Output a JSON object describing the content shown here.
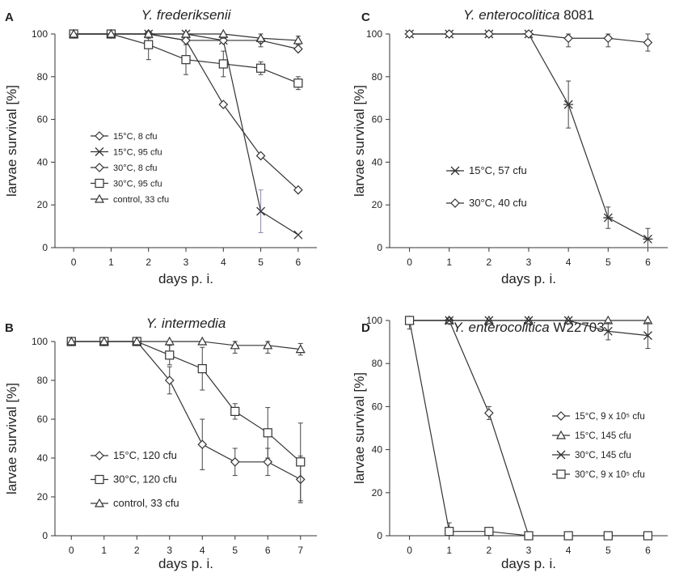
{
  "chart_data": [
    {
      "panel_letter": "A",
      "type": "line",
      "title": "Y. frederiksenii",
      "title_italic_part": "Y. frederiksenii",
      "title_regular_part": "",
      "xlabel": "days p. i.",
      "ylabel": "larvae survival [%]",
      "xlim": [
        -0.5,
        6.5
      ],
      "ylim": [
        0,
        100
      ],
      "xticks": [
        0,
        1,
        2,
        3,
        4,
        5,
        6
      ],
      "yticks": [
        0,
        20,
        40,
        60,
        80,
        100
      ],
      "legend_position": "lower-left",
      "series": [
        {
          "name": "15°C, 8 cfu",
          "marker": "diamond",
          "x": [
            0,
            1,
            2,
            3,
            4,
            5,
            6
          ],
          "values": [
            100,
            100,
            100,
            97,
            67,
            43,
            27
          ],
          "err": [
            0,
            0,
            0,
            0,
            0,
            0,
            0
          ]
        },
        {
          "name": "15°C, 95 cfu",
          "marker": "x",
          "x": [
            0,
            1,
            2,
            3,
            4,
            5,
            6
          ],
          "values": [
            100,
            100,
            100,
            100,
            97,
            17,
            6
          ],
          "err": [
            0,
            0,
            0,
            0,
            0,
            10,
            0
          ]
        },
        {
          "name": "30°C, 8 cfu",
          "marker": "diamond",
          "x": [
            0,
            1,
            2,
            3,
            4,
            5,
            6
          ],
          "values": [
            100,
            100,
            100,
            97,
            97,
            97,
            93
          ],
          "err": [
            0,
            0,
            0,
            0,
            0,
            0,
            0
          ]
        },
        {
          "name": "30°C, 95 cfu",
          "marker": "square",
          "x": [
            0,
            1,
            2,
            3,
            4,
            5,
            6
          ],
          "values": [
            100,
            100,
            95,
            88,
            86,
            84,
            77
          ],
          "err": [
            0,
            0,
            7,
            7,
            6,
            3,
            3
          ]
        },
        {
          "name": "control, 33 cfu",
          "marker": "triangle",
          "x": [
            0,
            1,
            2,
            3,
            4,
            5,
            6
          ],
          "values": [
            100,
            100,
            100,
            100,
            100,
            98,
            97
          ],
          "err": [
            0,
            0,
            2,
            0,
            2,
            4,
            2
          ]
        }
      ]
    },
    {
      "panel_letter": "B",
      "type": "line",
      "title": "Y. intermedia",
      "title_italic_part": "Y. intermedia",
      "title_regular_part": "",
      "xlabel": "days p. i.",
      "ylabel": "larvae survival [%]",
      "xlim": [
        -0.5,
        7.5
      ],
      "ylim": [
        0,
        100
      ],
      "xticks": [
        0,
        1,
        2,
        3,
        4,
        5,
        6,
        7
      ],
      "yticks": [
        0,
        20,
        40,
        60,
        80,
        100
      ],
      "legend_position": "lower-left",
      "series": [
        {
          "name": "15°C, 120 cfu",
          "marker": "diamond",
          "x": [
            0,
            1,
            2,
            3,
            4,
            5,
            6,
            7
          ],
          "values": [
            100,
            100,
            100,
            80,
            47,
            38,
            38,
            29
          ],
          "err": [
            0,
            0,
            0,
            7,
            13,
            7,
            7,
            12
          ]
        },
        {
          "name": "30°C, 120 cfu",
          "marker": "square",
          "x": [
            0,
            1,
            2,
            3,
            4,
            5,
            6,
            7
          ],
          "values": [
            100,
            100,
            100,
            93,
            86,
            64,
            53,
            38
          ],
          "err": [
            0,
            0,
            0,
            5,
            11,
            4,
            13,
            20
          ]
        },
        {
          "name": "control, 33 cfu",
          "marker": "triangle",
          "x": [
            0,
            1,
            2,
            3,
            4,
            5,
            6,
            7
          ],
          "values": [
            100,
            100,
            100,
            100,
            100,
            98,
            98,
            96
          ],
          "err": [
            0,
            0,
            0,
            5,
            0,
            4,
            4,
            3
          ]
        }
      ]
    },
    {
      "panel_letter": "C",
      "type": "line",
      "title": "Y. enterocolitica 8081",
      "title_italic_part": "Y. enterocolitica",
      "title_regular_part": " 8081",
      "xlabel": "days p. i.",
      "ylabel": "larvae survival [%]",
      "xlim": [
        -0.5,
        6.5
      ],
      "ylim": [
        0,
        100
      ],
      "xticks": [
        0,
        1,
        2,
        3,
        4,
        5,
        6
      ],
      "yticks": [
        0,
        20,
        40,
        60,
        80,
        100
      ],
      "legend_position": "lower-left",
      "series": [
        {
          "name": "15°C, 57 cfu",
          "marker": "star",
          "x": [
            0,
            1,
            2,
            3,
            4,
            5,
            6
          ],
          "values": [
            100,
            100,
            100,
            100,
            67,
            14,
            4
          ],
          "err": [
            0,
            0,
            0,
            0,
            11,
            5,
            5
          ]
        },
        {
          "name": "30°C, 40 cfu",
          "marker": "diamond",
          "x": [
            0,
            1,
            2,
            3,
            4,
            5,
            6
          ],
          "values": [
            100,
            100,
            100,
            100,
            98,
            98,
            96
          ],
          "err": [
            0,
            0,
            0,
            0,
            4,
            4,
            4
          ]
        }
      ]
    },
    {
      "panel_letter": "D",
      "type": "line",
      "title": "Y. enterocolitica W22703",
      "title_italic_part": "Y. enterocolitica",
      "title_regular_part": " W22703",
      "xlabel": "days p. i.",
      "ylabel": "larvae survival [%]",
      "xlim": [
        -0.5,
        6.5
      ],
      "ylim": [
        0,
        100
      ],
      "xticks": [
        0,
        1,
        2,
        3,
        4,
        5,
        6
      ],
      "yticks": [
        0,
        20,
        40,
        60,
        80,
        100
      ],
      "legend_position": "lower-right",
      "series": [
        {
          "name": "15°C, 9 x 10⁵ cfu",
          "marker": "diamond",
          "x": [
            0,
            1,
            2,
            3
          ],
          "values": [
            100,
            100,
            57,
            0
          ],
          "err": [
            0,
            0,
            3,
            0
          ]
        },
        {
          "name": "15°C, 145 cfu",
          "marker": "triangle",
          "x": [
            0,
            1,
            2,
            3,
            4,
            5,
            6
          ],
          "values": [
            100,
            100,
            100,
            100,
            100,
            100,
            100
          ],
          "err": [
            0,
            0,
            0,
            0,
            0,
            0,
            0
          ]
        },
        {
          "name": "30°C, 145 cfu",
          "marker": "x",
          "x": [
            0,
            1,
            2,
            3,
            4,
            5,
            6
          ],
          "values": [
            100,
            100,
            100,
            100,
            100,
            95,
            93
          ],
          "err": [
            0,
            0,
            0,
            0,
            0,
            4,
            6
          ]
        },
        {
          "name": "30°C, 9 x 10⁵ cfu",
          "marker": "square",
          "x": [
            0,
            1,
            2,
            3,
            4,
            5,
            6
          ],
          "values": [
            100,
            2,
            2,
            0,
            0,
            0,
            0
          ],
          "err": [
            4,
            4,
            1,
            0,
            0,
            0,
            0
          ]
        }
      ]
    }
  ]
}
